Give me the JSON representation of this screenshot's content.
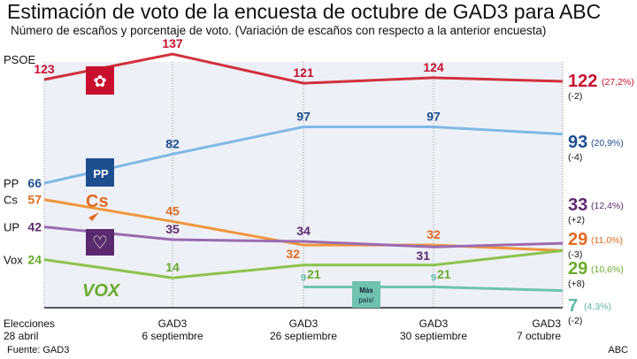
{
  "title": "Estimación de voto de la encuesta de octubre de GAD3 para ABC",
  "subtitle": "Número de escaños y porcentaje de voto. (Variación de escaños con respecto a la anterior encuesta)",
  "source": "Fuente: GAD3",
  "credit": "ABC",
  "chart_data": {
    "type": "line",
    "categories": [
      [
        "Elecciones",
        "28 abril"
      ],
      [
        "GAD3",
        "6 septiembre"
      ],
      [
        "GAD3",
        "26 septiembre"
      ],
      [
        "GAD3",
        "30 septiembre"
      ],
      [
        "GAD3",
        "7 octubre"
      ]
    ],
    "grid": "vertical dotted lines",
    "series": [
      {
        "name": "PSOE",
        "color": "#d0313d",
        "label_color": "#c8102e",
        "values": [
          123,
          137,
          121,
          124,
          122
        ],
        "pct": "(27,2%)",
        "change": "(-2)",
        "logo": "psoe-rose-logo"
      },
      {
        "name": "PP",
        "color": "#7fb8e6",
        "label_color": "#1d4e8f",
        "values": [
          66,
          82,
          97,
          97,
          93
        ],
        "pct": "(20,9%)",
        "change": "(-4)",
        "logo": "pp-logo",
        "logo_text": "PP"
      },
      {
        "name": "Cs",
        "color": "#f0953a",
        "label_color": "#e06a1f",
        "values": [
          57,
          45,
          32,
          32,
          29
        ],
        "pct": "(11,0%)",
        "change": "(-3)",
        "logo": "cs-logo",
        "logo_text": "Cs"
      },
      {
        "name": "UP",
        "color": "#9b6bb0",
        "label_color": "#5b2a6e",
        "values": [
          42,
          35,
          34,
          31,
          33
        ],
        "pct": "(12,4%)",
        "change": "(+2)",
        "logo": "up-heart-logo"
      },
      {
        "name": "Vox",
        "color": "#8cc34a",
        "label_color": "#6aaa2a",
        "values": [
          24,
          14,
          21,
          21,
          29
        ],
        "pct": "(10,6%)",
        "change": "(+8)",
        "logo": "vox-logo",
        "logo_text": "VOX"
      },
      {
        "name": "",
        "color": "#6fc3b0",
        "label_color": "#5fb8a4",
        "values": [
          null,
          null,
          9,
          9,
          7
        ],
        "pct": "(4,3%)",
        "change": "(-2)",
        "logo": "mas-pais-logo",
        "logo_text": "Más país!"
      }
    ]
  }
}
